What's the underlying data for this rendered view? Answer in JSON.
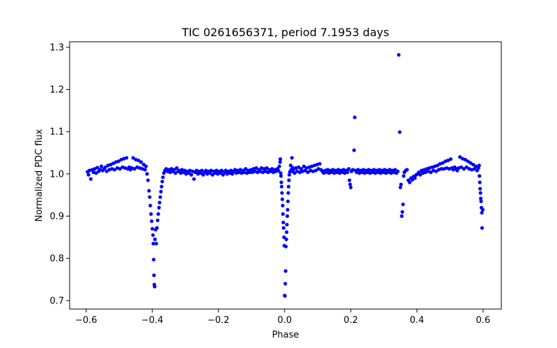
{
  "chart_data": {
    "type": "scatter",
    "title": "TIC 0261656371, period 7.1953 days",
    "xlabel": "Phase",
    "ylabel": "Normalized PDC flux",
    "xlim": [
      -0.65,
      0.655
    ],
    "ylim": [
      0.68,
      1.313
    ],
    "grid": false,
    "marker_color": "#0000ff",
    "x_ticks": [
      {
        "value": -0.6,
        "label": "−0.6"
      },
      {
        "value": -0.4,
        "label": "−0.4"
      },
      {
        "value": -0.2,
        "label": "−0.2"
      },
      {
        "value": 0.0,
        "label": "0.0"
      },
      {
        "value": 0.2,
        "label": "0.2"
      },
      {
        "value": 0.4,
        "label": "0.4"
      },
      {
        "value": 0.6,
        "label": "0.6"
      }
    ],
    "y_ticks": [
      {
        "value": 0.7,
        "label": "0.7"
      },
      {
        "value": 0.8,
        "label": "0.8"
      },
      {
        "value": 0.9,
        "label": "0.9"
      },
      {
        "value": 1.0,
        "label": "1.0"
      },
      {
        "value": 1.1,
        "label": "1.1"
      },
      {
        "value": 1.2,
        "label": "1.2"
      },
      {
        "value": 1.3,
        "label": "1.3"
      }
    ],
    "points": [
      [
        -0.596,
        1.005
      ],
      [
        -0.593,
        0.998
      ],
      [
        -0.59,
        1.008
      ],
      [
        -0.586,
        0.988
      ],
      [
        -0.582,
        1.01
      ],
      [
        -0.578,
        1.004
      ],
      [
        -0.574,
        1.012
      ],
      [
        -0.57,
        1.002
      ],
      [
        -0.566,
        1.015
      ],
      [
        -0.562,
        1.006
      ],
      [
        -0.558,
        1.01
      ],
      [
        -0.554,
        1.018
      ],
      [
        -0.55,
        1.008
      ],
      [
        -0.546,
        1.012
      ],
      [
        -0.542,
        1.016
      ],
      [
        -0.538,
        1.006
      ],
      [
        -0.534,
        1.02
      ],
      [
        -0.53,
        1.01
      ],
      [
        -0.526,
        1.022
      ],
      [
        -0.522,
        1.012
      ],
      [
        -0.518,
        1.025
      ],
      [
        -0.514,
        1.01
      ],
      [
        -0.51,
        1.028
      ],
      [
        -0.506,
        1.014
      ],
      [
        -0.502,
        1.03
      ],
      [
        -0.498,
        1.012
      ],
      [
        -0.494,
        1.034
      ],
      [
        -0.49,
        1.016
      ],
      [
        -0.486,
        1.036
      ],
      [
        -0.482,
        1.014
      ],
      [
        -0.478,
        1.038
      ],
      [
        -0.474,
        1.012
      ],
      [
        -0.47,
        1.016
      ],
      [
        -0.466,
        1.01
      ],
      [
        -0.462,
        1.014
      ],
      [
        -0.458,
        1.038
      ],
      [
        -0.454,
        1.012
      ],
      [
        -0.45,
        1.034
      ],
      [
        -0.446,
        1.016
      ],
      [
        -0.442,
        1.032
      ],
      [
        -0.438,
        1.014
      ],
      [
        -0.434,
        1.028
      ],
      [
        -0.43,
        1.012
      ],
      [
        -0.426,
        1.022
      ],
      [
        -0.422,
        1.01
      ],
      [
        -0.419,
        1.018
      ],
      [
        -0.416,
        1.0
      ],
      [
        -0.413,
        0.985
      ],
      [
        -0.41,
        0.96
      ],
      [
        -0.408,
        0.945
      ],
      [
        -0.406,
        0.925
      ],
      [
        -0.404,
        0.905
      ],
      [
        -0.402,
        0.888
      ],
      [
        -0.4,
        0.87
      ],
      [
        -0.398,
        0.855
      ],
      [
        -0.397,
        0.835
      ],
      [
        -0.396,
        0.797
      ],
      [
        -0.395,
        0.76
      ],
      [
        -0.394,
        0.738
      ],
      [
        -0.393,
        0.733
      ],
      [
        -0.392,
        0.845
      ],
      [
        -0.39,
        0.868
      ],
      [
        -0.388,
        0.835
      ],
      [
        -0.386,
        0.872
      ],
      [
        -0.384,
        0.89
      ],
      [
        -0.382,
        0.905
      ],
      [
        -0.38,
        0.92
      ],
      [
        -0.378,
        0.932
      ],
      [
        -0.376,
        0.945
      ],
      [
        -0.374,
        0.958
      ],
      [
        -0.372,
        0.97
      ],
      [
        -0.37,
        0.982
      ],
      [
        -0.368,
        0.992
      ],
      [
        -0.365,
        1.002
      ],
      [
        -0.362,
        1.008
      ],
      [
        -0.358,
        1.012
      ],
      [
        -0.354,
        1.006
      ],
      [
        -0.35,
        1.01
      ],
      [
        -0.346,
        1.004
      ],
      [
        -0.342,
        1.012
      ],
      [
        -0.338,
        1.006
      ],
      [
        -0.334,
        1.01
      ],
      [
        -0.33,
        1.002
      ],
      [
        -0.326,
        1.014
      ],
      [
        -0.322,
        1.006
      ],
      [
        -0.318,
        1.008
      ],
      [
        -0.314,
        1.002
      ],
      [
        -0.31,
        1.01
      ],
      [
        -0.306,
        1.004
      ],
      [
        -0.302,
        1.008
      ],
      [
        -0.298,
        1.0
      ],
      [
        -0.294,
        1.006
      ],
      [
        -0.29,
        1.002
      ],
      [
        -0.286,
        1.008
      ],
      [
        -0.282,
        0.998
      ],
      [
        -0.278,
        1.006
      ],
      [
        -0.274,
        0.988
      ],
      [
        -0.27,
        1.004
      ],
      [
        -0.266,
        1.008
      ],
      [
        -0.262,
        1.0
      ],
      [
        -0.258,
        1.006
      ],
      [
        -0.254,
        1.002
      ],
      [
        -0.25,
        1.008
      ],
      [
        -0.246,
        0.998
      ],
      [
        -0.242,
        1.004
      ],
      [
        -0.238,
        1.008
      ],
      [
        -0.234,
        1.0
      ],
      [
        -0.23,
        1.006
      ],
      [
        -0.226,
        1.002
      ],
      [
        -0.222,
        1.008
      ],
      [
        -0.218,
        0.998
      ],
      [
        -0.214,
        1.006
      ],
      [
        -0.21,
        1.002
      ],
      [
        -0.206,
        1.008
      ],
      [
        -0.202,
        1.0
      ],
      [
        -0.198,
        1.006
      ],
      [
        -0.194,
        1.002
      ],
      [
        -0.19,
        1.008
      ],
      [
        -0.186,
        0.998
      ],
      [
        -0.182,
        1.004
      ],
      [
        -0.178,
        1.008
      ],
      [
        -0.174,
        1.0
      ],
      [
        -0.17,
        1.006
      ],
      [
        -0.166,
        1.002
      ],
      [
        -0.162,
        1.008
      ],
      [
        -0.158,
        1.0
      ],
      [
        -0.154,
        1.006
      ],
      [
        -0.15,
        1.01
      ],
      [
        -0.146,
        1.002
      ],
      [
        -0.142,
        1.008
      ],
      [
        -0.138,
        1.004
      ],
      [
        -0.134,
        1.01
      ],
      [
        -0.13,
        1.002
      ],
      [
        -0.126,
        1.008
      ],
      [
        -0.122,
        1.004
      ],
      [
        -0.118,
        1.012
      ],
      [
        -0.114,
        1.002
      ],
      [
        -0.11,
        1.008
      ],
      [
        -0.106,
        1.004
      ],
      [
        -0.102,
        1.01
      ],
      [
        -0.098,
        1.004
      ],
      [
        -0.094,
        1.012
      ],
      [
        -0.09,
        1.006
      ],
      [
        -0.086,
        1.014
      ],
      [
        -0.082,
        1.004
      ],
      [
        -0.078,
        1.01
      ],
      [
        -0.074,
        1.006
      ],
      [
        -0.07,
        1.014
      ],
      [
        -0.066,
        1.004
      ],
      [
        -0.062,
        1.012
      ],
      [
        -0.058,
        1.006
      ],
      [
        -0.054,
        1.014
      ],
      [
        -0.05,
        1.004
      ],
      [
        -0.046,
        1.01
      ],
      [
        -0.042,
        1.006
      ],
      [
        -0.038,
        1.012
      ],
      [
        -0.034,
        1.004
      ],
      [
        -0.03,
        1.01
      ],
      [
        -0.026,
        1.006
      ],
      [
        -0.022,
        1.012
      ],
      [
        -0.019,
        1.008
      ],
      [
        -0.016,
        1.018
      ],
      [
        -0.014,
        1.028
      ],
      [
        -0.013,
        1.035
      ],
      [
        -0.012,
        1.002
      ],
      [
        -0.011,
        0.995
      ],
      [
        -0.01,
        0.98
      ],
      [
        -0.009,
        0.97
      ],
      [
        -0.008,
        0.955
      ],
      [
        -0.007,
        0.94
      ],
      [
        -0.006,
        0.925
      ],
      [
        -0.005,
        0.905
      ],
      [
        -0.004,
        0.885
      ],
      [
        -0.003,
        0.872
      ],
      [
        -0.002,
        0.85
      ],
      [
        -0.001,
        0.83
      ],
      [
        0.0,
        0.712
      ],
      [
        0.001,
        0.711
      ],
      [
        0.002,
        0.74
      ],
      [
        0.003,
        0.77
      ],
      [
        0.004,
        0.828
      ],
      [
        0.005,
        0.845
      ],
      [
        0.006,
        0.862
      ],
      [
        0.007,
        0.88
      ],
      [
        0.008,
        0.9
      ],
      [
        0.009,
        0.915
      ],
      [
        0.01,
        0.935
      ],
      [
        0.011,
        0.955
      ],
      [
        0.012,
        0.97
      ],
      [
        0.013,
        0.985
      ],
      [
        0.014,
        0.998
      ],
      [
        0.016,
        1.005
      ],
      [
        0.018,
        1.02
      ],
      [
        0.02,
        1.01
      ],
      [
        0.022,
        1.038
      ],
      [
        0.024,
        1.015
      ],
      [
        0.026,
        1.005
      ],
      [
        0.028,
        1.012
      ],
      [
        0.03,
        1.002
      ],
      [
        0.034,
        1.014
      ],
      [
        0.038,
        1.006
      ],
      [
        0.042,
        1.016
      ],
      [
        0.046,
        1.004
      ],
      [
        0.05,
        1.012
      ],
      [
        0.054,
        1.006
      ],
      [
        0.058,
        1.018
      ],
      [
        0.062,
        1.008
      ],
      [
        0.066,
        1.014
      ],
      [
        0.07,
        1.004
      ],
      [
        0.074,
        1.016
      ],
      [
        0.078,
        1.008
      ],
      [
        0.082,
        1.018
      ],
      [
        0.086,
        1.006
      ],
      [
        0.09,
        1.02
      ],
      [
        0.094,
        1.008
      ],
      [
        0.098,
        1.022
      ],
      [
        0.102,
        1.012
      ],
      [
        0.106,
        1.024
      ],
      [
        0.11,
        1.01
      ],
      [
        0.114,
        1.006
      ],
      [
        0.118,
        1.002
      ],
      [
        0.122,
        1.008
      ],
      [
        0.126,
        1.004
      ],
      [
        0.13,
        1.01
      ],
      [
        0.134,
        1.002
      ],
      [
        0.138,
        1.008
      ],
      [
        0.142,
        1.004
      ],
      [
        0.146,
        1.01
      ],
      [
        0.15,
        1.002
      ],
      [
        0.154,
        1.008
      ],
      [
        0.158,
        1.004
      ],
      [
        0.162,
        1.01
      ],
      [
        0.166,
        1.002
      ],
      [
        0.17,
        1.008
      ],
      [
        0.174,
        1.004
      ],
      [
        0.178,
        1.01
      ],
      [
        0.182,
        1.002
      ],
      [
        0.186,
        1.008
      ],
      [
        0.19,
        1.004
      ],
      [
        0.194,
        1.012
      ],
      [
        0.196,
        0.985
      ],
      [
        0.198,
        0.975
      ],
      [
        0.2,
        0.968
      ],
      [
        0.202,
        1.006
      ],
      [
        0.206,
        1.01
      ],
      [
        0.21,
        1.056
      ],
      [
        0.212,
        1.134
      ],
      [
        0.214,
        1.008
      ],
      [
        0.218,
        1.004
      ],
      [
        0.222,
        1.01
      ],
      [
        0.226,
        1.002
      ],
      [
        0.23,
        1.008
      ],
      [
        0.234,
        1.004
      ],
      [
        0.238,
        1.01
      ],
      [
        0.242,
        1.002
      ],
      [
        0.246,
        1.008
      ],
      [
        0.25,
        1.004
      ],
      [
        0.254,
        1.01
      ],
      [
        0.258,
        1.002
      ],
      [
        0.262,
        1.008
      ],
      [
        0.266,
        1.004
      ],
      [
        0.27,
        1.01
      ],
      [
        0.274,
        1.002
      ],
      [
        0.278,
        1.008
      ],
      [
        0.282,
        1.004
      ],
      [
        0.286,
        1.01
      ],
      [
        0.29,
        1.002
      ],
      [
        0.294,
        1.008
      ],
      [
        0.298,
        1.004
      ],
      [
        0.302,
        1.01
      ],
      [
        0.306,
        1.002
      ],
      [
        0.31,
        1.008
      ],
      [
        0.314,
        1.004
      ],
      [
        0.318,
        1.01
      ],
      [
        0.322,
        1.002
      ],
      [
        0.326,
        1.008
      ],
      [
        0.33,
        1.004
      ],
      [
        0.334,
        1.01
      ],
      [
        0.338,
        1.002
      ],
      [
        0.342,
        1.006
      ],
      [
        0.345,
        1.282
      ],
      [
        0.348,
        1.099
      ],
      [
        0.35,
        0.968
      ],
      [
        0.352,
        0.975
      ],
      [
        0.354,
        0.9
      ],
      [
        0.356,
        0.91
      ],
      [
        0.358,
        0.928
      ],
      [
        0.36,
        0.995
      ],
      [
        0.362,
        1.004
      ],
      [
        0.366,
        1.008
      ],
      [
        0.37,
        1.01
      ],
      [
        0.374,
        0.985
      ],
      [
        0.378,
        0.98
      ],
      [
        0.382,
        0.99
      ],
      [
        0.386,
        0.986
      ],
      [
        0.39,
        0.994
      ],
      [
        0.394,
        0.99
      ],
      [
        0.398,
        0.998
      ],
      [
        0.402,
        1.0
      ],
      [
        0.406,
        1.004
      ],
      [
        0.41,
        0.998
      ],
      [
        0.414,
        1.008
      ],
      [
        0.418,
        1.002
      ],
      [
        0.422,
        1.01
      ],
      [
        0.426,
        1.004
      ],
      [
        0.43,
        1.012
      ],
      [
        0.434,
        1.006
      ],
      [
        0.438,
        1.014
      ],
      [
        0.442,
        1.004
      ],
      [
        0.446,
        1.016
      ],
      [
        0.45,
        1.008
      ],
      [
        0.454,
        1.018
      ],
      [
        0.458,
        1.006
      ],
      [
        0.462,
        1.02
      ],
      [
        0.466,
        1.01
      ],
      [
        0.47,
        1.024
      ],
      [
        0.474,
        1.012
      ],
      [
        0.478,
        1.026
      ],
      [
        0.482,
        1.012
      ],
      [
        0.486,
        1.03
      ],
      [
        0.49,
        1.014
      ],
      [
        0.494,
        1.032
      ],
      [
        0.498,
        1.012
      ],
      [
        0.502,
        1.035
      ],
      [
        0.506,
        1.014
      ],
      [
        0.51,
        1.01
      ],
      [
        0.514,
        1.016
      ],
      [
        0.518,
        1.012
      ],
      [
        0.522,
        1.008
      ],
      [
        0.526,
        1.014
      ],
      [
        0.53,
        1.04
      ],
      [
        0.534,
        1.016
      ],
      [
        0.538,
        1.036
      ],
      [
        0.542,
        1.012
      ],
      [
        0.546,
        1.034
      ],
      [
        0.55,
        1.016
      ],
      [
        0.554,
        1.03
      ],
      [
        0.558,
        1.012
      ],
      [
        0.562,
        1.026
      ],
      [
        0.566,
        1.01
      ],
      [
        0.57,
        1.022
      ],
      [
        0.574,
        1.012
      ],
      [
        0.578,
        1.018
      ],
      [
        0.582,
        1.008
      ],
      [
        0.586,
        1.014
      ],
      [
        0.588,
        1.02
      ],
      [
        0.589,
        0.995
      ],
      [
        0.59,
        0.98
      ],
      [
        0.591,
        0.965
      ],
      [
        0.592,
        0.955
      ],
      [
        0.593,
        0.942
      ],
      [
        0.594,
        0.935
      ],
      [
        0.595,
        0.92
      ],
      [
        0.596,
        0.908
      ],
      [
        0.597,
        0.872
      ],
      [
        0.599,
        0.915
      ]
    ]
  }
}
